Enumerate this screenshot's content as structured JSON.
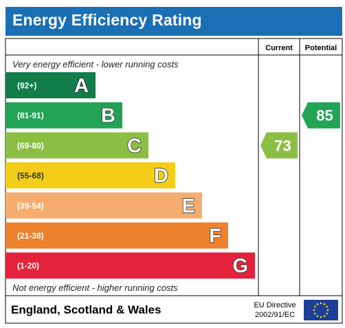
{
  "header": {
    "title": "Energy Efficiency Rating"
  },
  "columns": {
    "current": "Current",
    "potential": "Potential"
  },
  "top_note": "Very energy efficient - lower running costs",
  "bottom_note": "Not energy efficient - higher running costs",
  "footer": {
    "region": "England, Scotland & Wales",
    "directive_line1": "EU Directive",
    "directive_line2": "2002/91/EC",
    "flag_icon": "eu-flag-icon"
  },
  "chart_data": {
    "type": "bar",
    "categories": [
      "A",
      "B",
      "C",
      "D",
      "E",
      "F",
      "G"
    ],
    "ranges": [
      "(92+)",
      "(81-91)",
      "(69-80)",
      "(55-68)",
      "(39-54)",
      "(21-38)",
      "(1-20)"
    ],
    "colors": [
      "#127c4b",
      "#22a356",
      "#8cbe44",
      "#f3cd18",
      "#f4ad6e",
      "#ee812c",
      "#e4223b"
    ],
    "current": {
      "value": 73,
      "band": "C",
      "color": "#8cbe44"
    },
    "potential": {
      "value": 85,
      "band": "B",
      "color": "#22a356"
    }
  }
}
